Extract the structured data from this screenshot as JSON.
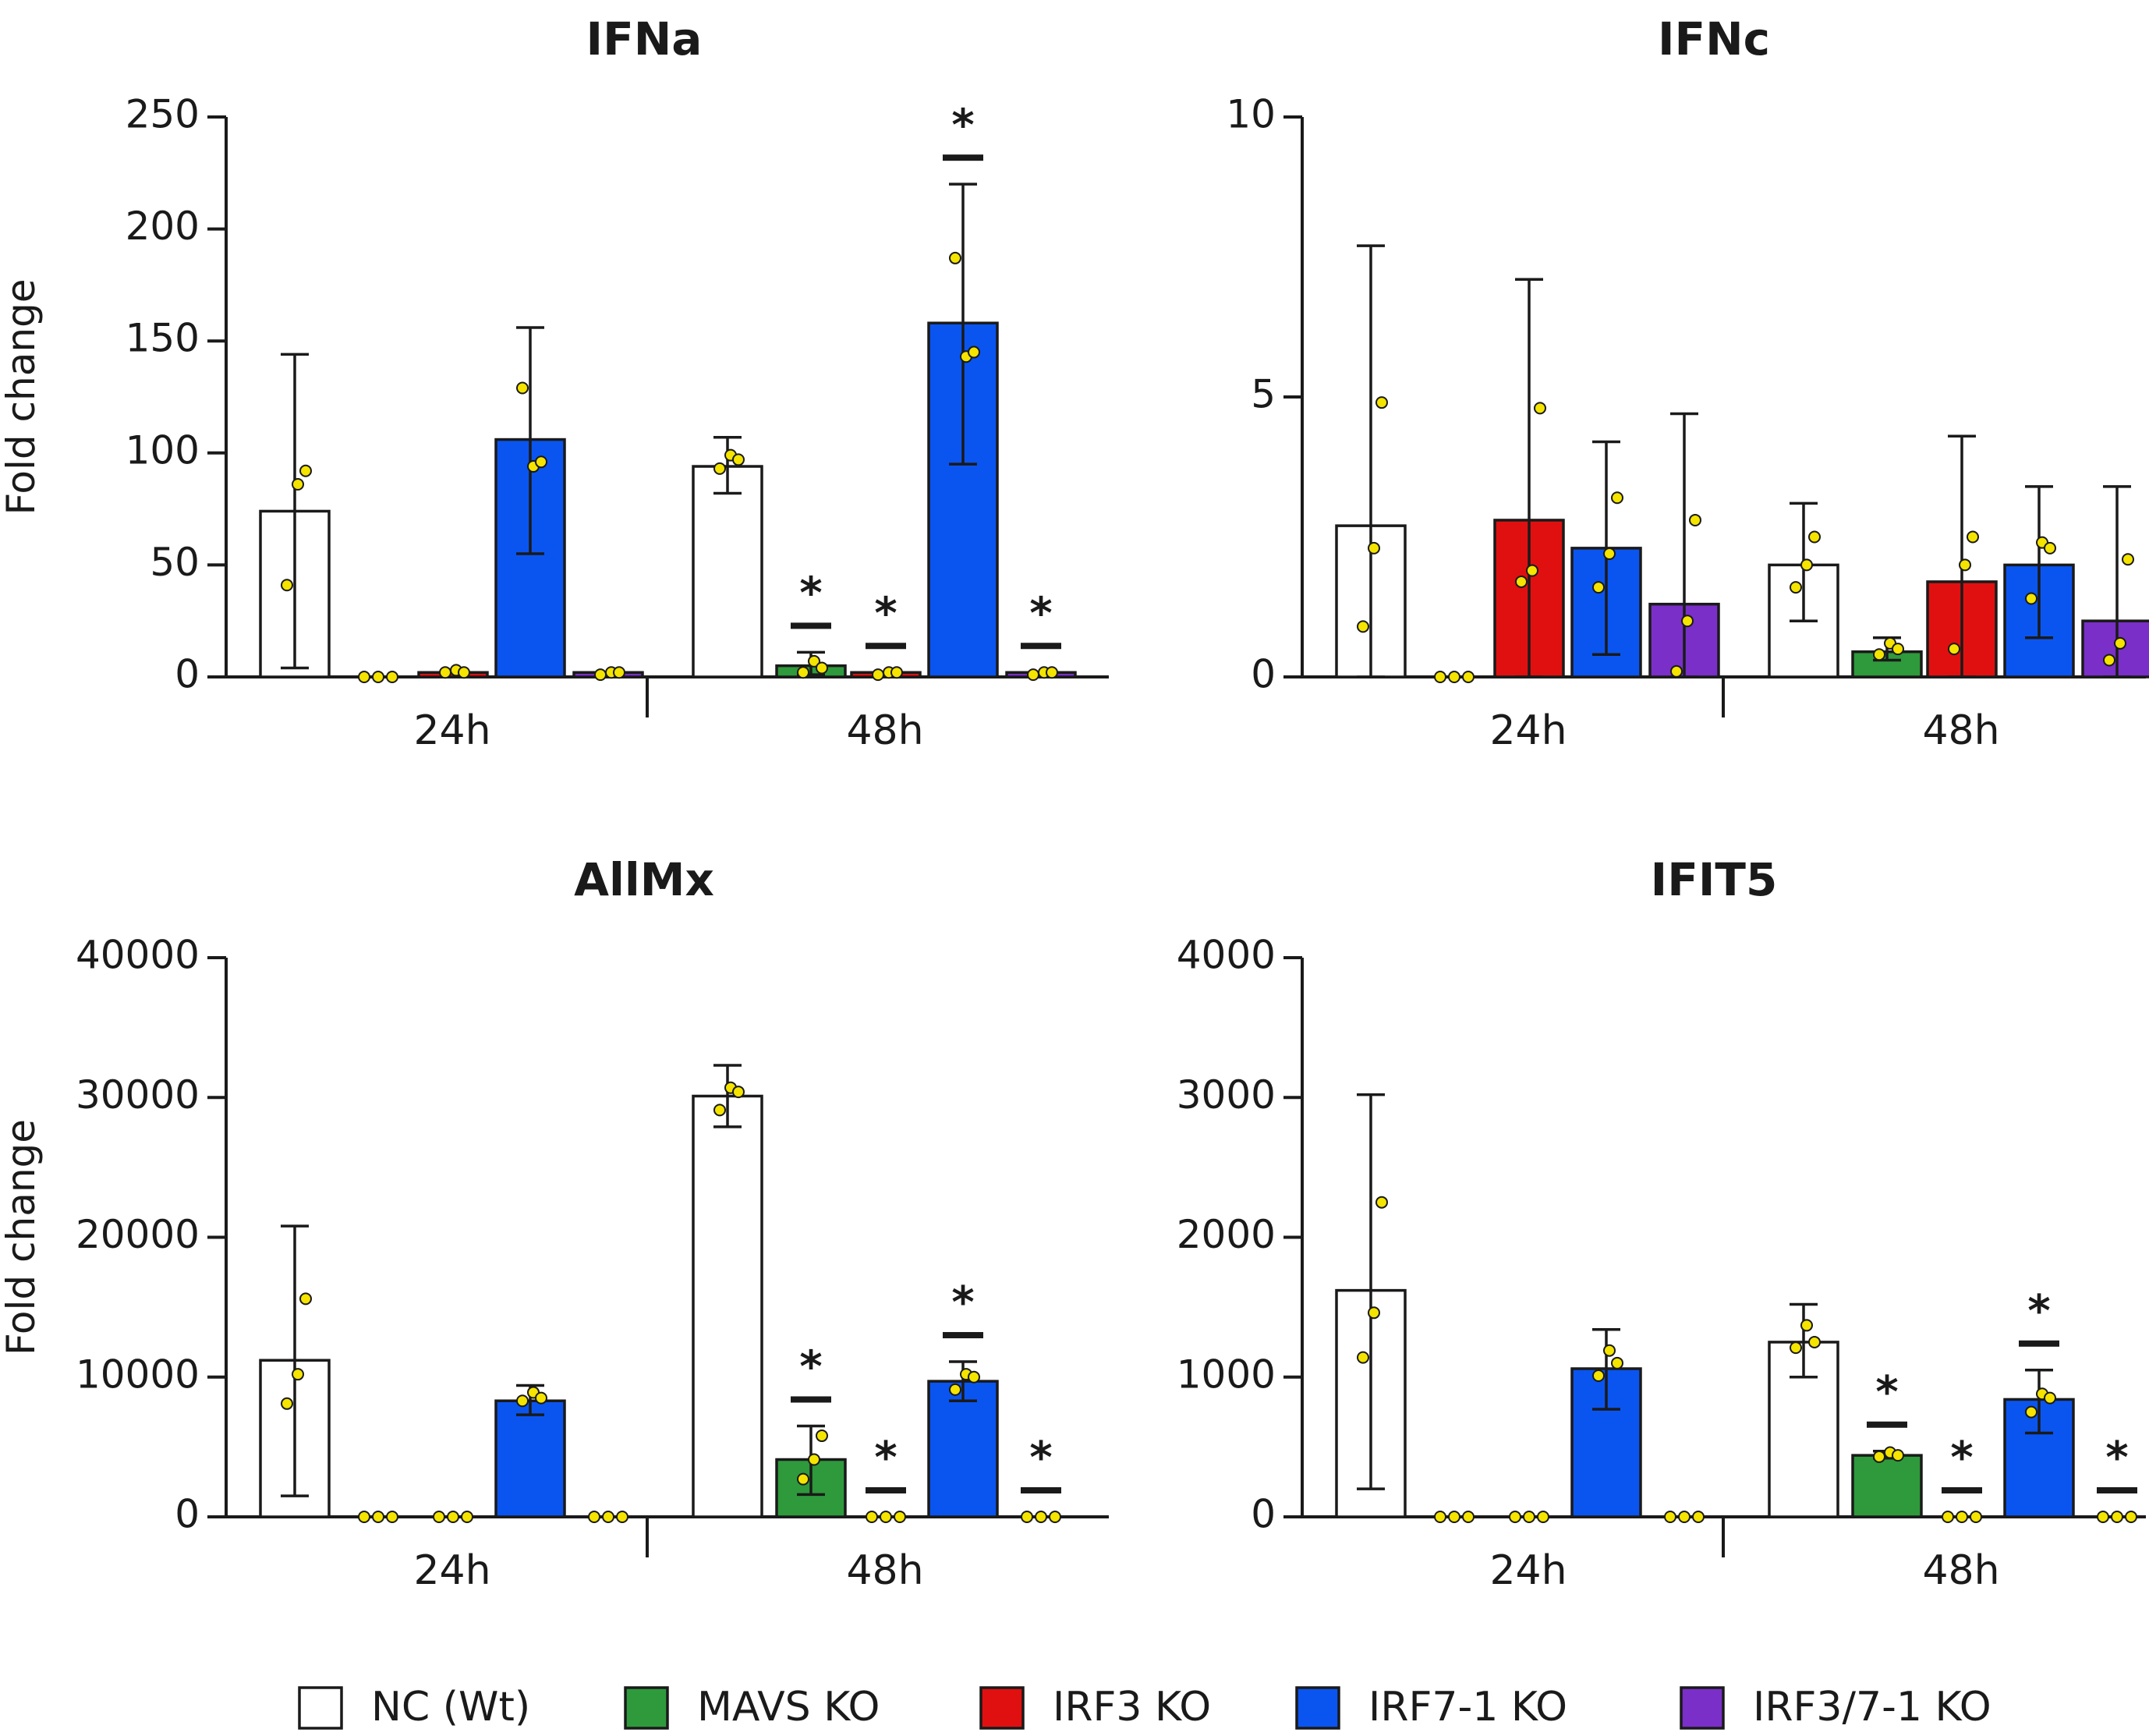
{
  "colors": {
    "NC (Wt)": "#ffffff",
    "MAVS KO": "#2e9a3c",
    "IRF3 KO": "#e01010",
    "IRF7-1 KO": "#0a55f0",
    "IRF3/7-1 KO": "#7a2fc8",
    "axis": "#1a1a1a",
    "point": "#f4e400"
  },
  "legend": [
    "NC (Wt)",
    "MAVS KO",
    "IRF3 KO",
    "IRF7-1 KO",
    "IRF3/7-1 KO"
  ],
  "chart_data": [
    {
      "type": "bar",
      "title": "IFNa",
      "ylabel": "Fold change",
      "ylim": [
        0,
        250
      ],
      "yticks": [
        0,
        50,
        100,
        150,
        200,
        250
      ],
      "categories": [
        "24h",
        "48h"
      ],
      "series": [
        {
          "name": "NC (Wt)",
          "values": [
            74,
            94
          ],
          "err_low": [
            4,
            82
          ],
          "err_high": [
            144,
            107
          ],
          "points": [
            [
              41,
              86,
              92
            ],
            [
              93,
              99,
              97
            ]
          ],
          "sig": [
            false,
            false
          ]
        },
        {
          "name": "MAVS KO",
          "values": [
            0,
            5
          ],
          "err_low": [
            0,
            1
          ],
          "err_high": [
            0,
            11
          ],
          "points": [
            [
              0,
              0,
              0
            ],
            [
              2,
              7,
              4
            ]
          ],
          "sig": [
            false,
            true
          ]
        },
        {
          "name": "IRF3 KO",
          "values": [
            2,
            2
          ],
          "err_low": [
            2,
            2
          ],
          "err_high": [
            2,
            2
          ],
          "points": [
            [
              2,
              3,
              2
            ],
            [
              1,
              2,
              2
            ]
          ],
          "sig": [
            false,
            true
          ]
        },
        {
          "name": "IRF7-1 KO",
          "values": [
            106,
            158
          ],
          "err_low": [
            55,
            95
          ],
          "err_high": [
            156,
            220
          ],
          "points": [
            [
              129,
              94,
              96
            ],
            [
              187,
              143,
              145
            ]
          ],
          "sig": [
            false,
            true
          ]
        },
        {
          "name": "IRF3/7-1 KO",
          "values": [
            2,
            2
          ],
          "err_low": [
            2,
            2
          ],
          "err_high": [
            2,
            2
          ],
          "points": [
            [
              1,
              2,
              2
            ],
            [
              1,
              2,
              2
            ]
          ],
          "sig": [
            false,
            true
          ]
        }
      ],
      "sig_mark": "*"
    },
    {
      "type": "bar",
      "title": "IFNc",
      "ylabel": "",
      "ylim": [
        0,
        10
      ],
      "yticks": [
        0,
        5,
        10
      ],
      "categories": [
        "24h",
        "48h"
      ],
      "series": [
        {
          "name": "NC (Wt)",
          "values": [
            2.7,
            2.0
          ],
          "err_low": [
            0,
            1.0
          ],
          "err_high": [
            7.7,
            3.1
          ],
          "points": [
            [
              0.9,
              2.3,
              4.9
            ],
            [
              1.6,
              2.0,
              2.5
            ]
          ],
          "sig": [
            false,
            false
          ]
        },
        {
          "name": "MAVS KO",
          "values": [
            0,
            0.45
          ],
          "err_low": [
            0,
            0.3
          ],
          "err_high": [
            0,
            0.7
          ],
          "points": [
            [
              0,
              0,
              0
            ],
            [
              0.4,
              0.6,
              0.5
            ]
          ],
          "sig": [
            false,
            false
          ]
        },
        {
          "name": "IRF3 KO",
          "values": [
            2.8,
            1.7
          ],
          "err_low": [
            0,
            0
          ],
          "err_high": [
            7.1,
            4.3
          ],
          "points": [
            [
              1.7,
              1.9,
              4.8
            ],
            [
              0.5,
              2.0,
              2.5
            ]
          ],
          "sig": [
            false,
            false
          ]
        },
        {
          "name": "IRF7-1 KO",
          "values": [
            2.3,
            2.0
          ],
          "err_low": [
            0.4,
            0.7
          ],
          "err_high": [
            4.2,
            3.4
          ],
          "points": [
            [
              1.6,
              2.2,
              3.2
            ],
            [
              1.4,
              2.4,
              2.3
            ]
          ],
          "sig": [
            false,
            false
          ]
        },
        {
          "name": "IRF3/7-1 KO",
          "values": [
            1.3,
            1.0
          ],
          "err_low": [
            0,
            0
          ],
          "err_high": [
            4.7,
            3.4
          ],
          "points": [
            [
              0.1,
              1.0,
              2.8
            ],
            [
              0.3,
              0.6,
              2.1
            ]
          ],
          "sig": [
            false,
            false
          ]
        }
      ],
      "sig_mark": "*"
    },
    {
      "type": "bar",
      "title": "AllMx",
      "ylabel": "Fold change",
      "ylim": [
        0,
        40000
      ],
      "yticks": [
        0,
        10000,
        20000,
        30000,
        40000
      ],
      "categories": [
        "24h",
        "48h"
      ],
      "series": [
        {
          "name": "NC (Wt)",
          "values": [
            11200,
            30100
          ],
          "err_low": [
            1500,
            27900
          ],
          "err_high": [
            20800,
            32300
          ],
          "points": [
            [
              8100,
              10200,
              15600
            ],
            [
              29100,
              30700,
              30400
            ]
          ],
          "sig": [
            false,
            false
          ]
        },
        {
          "name": "MAVS KO",
          "values": [
            0,
            4100
          ],
          "err_low": [
            0,
            1600
          ],
          "err_high": [
            0,
            6500
          ],
          "points": [
            [
              0,
              0,
              0
            ],
            [
              2700,
              4100,
              5800
            ]
          ],
          "sig": [
            false,
            true
          ]
        },
        {
          "name": "IRF3 KO",
          "values": [
            0,
            0
          ],
          "err_low": [
            0,
            0
          ],
          "err_high": [
            0,
            0
          ],
          "points": [
            [
              0,
              0,
              0
            ],
            [
              0,
              0,
              0
            ]
          ],
          "sig": [
            false,
            true
          ]
        },
        {
          "name": "IRF7-1 KO",
          "values": [
            8300,
            9700
          ],
          "err_low": [
            7300,
            8300
          ],
          "err_high": [
            9400,
            11100
          ],
          "points": [
            [
              8300,
              8900,
              8500
            ],
            [
              9100,
              10200,
              10000
            ]
          ],
          "sig": [
            false,
            true
          ]
        },
        {
          "name": "IRF3/7-1 KO",
          "values": [
            0,
            0
          ],
          "err_low": [
            0,
            0
          ],
          "err_high": [
            0,
            0
          ],
          "points": [
            [
              0,
              0,
              0
            ],
            [
              0,
              0,
              0
            ]
          ],
          "sig": [
            false,
            true
          ]
        }
      ],
      "sig_mark": "*"
    },
    {
      "type": "bar",
      "title": "IFIT5",
      "ylabel": "",
      "ylim": [
        0,
        4000
      ],
      "yticks": [
        0,
        1000,
        2000,
        3000,
        4000
      ],
      "categories": [
        "24h",
        "48h"
      ],
      "series": [
        {
          "name": "NC (Wt)",
          "values": [
            1620,
            1250
          ],
          "err_low": [
            200,
            1000
          ],
          "err_high": [
            3020,
            1520
          ],
          "points": [
            [
              1140,
              1460,
              2250
            ],
            [
              1210,
              1370,
              1250
            ]
          ],
          "sig": [
            false,
            false
          ]
        },
        {
          "name": "MAVS KO",
          "values": [
            0,
            440
          ],
          "err_low": [
            0,
            420
          ],
          "err_high": [
            0,
            470
          ],
          "points": [
            [
              0,
              0,
              0
            ],
            [
              430,
              460,
              440
            ]
          ],
          "sig": [
            false,
            true
          ]
        },
        {
          "name": "IRF3 KO",
          "values": [
            0,
            0
          ],
          "err_low": [
            0,
            0
          ],
          "err_high": [
            0,
            0
          ],
          "points": [
            [
              0,
              0,
              0
            ],
            [
              0,
              0,
              0
            ]
          ],
          "sig": [
            false,
            true
          ]
        },
        {
          "name": "IRF7-1 KO",
          "values": [
            1060,
            840
          ],
          "err_low": [
            770,
            600
          ],
          "err_high": [
            1340,
            1050
          ],
          "points": [
            [
              1010,
              1190,
              1100
            ],
            [
              750,
              880,
              850
            ]
          ],
          "sig": [
            false,
            true
          ]
        },
        {
          "name": "IRF3/7-1 KO",
          "values": [
            0,
            0
          ],
          "err_low": [
            0,
            0
          ],
          "err_high": [
            0,
            0
          ],
          "points": [
            [
              0,
              0,
              0
            ],
            [
              0,
              0,
              0
            ]
          ],
          "sig": [
            false,
            true
          ]
        }
      ],
      "sig_mark": "*"
    }
  ]
}
